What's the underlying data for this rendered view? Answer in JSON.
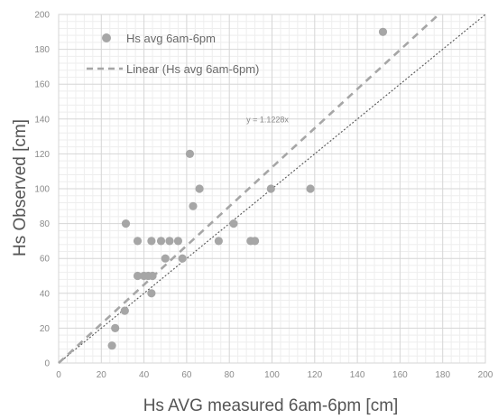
{
  "chart_data": {
    "type": "scatter",
    "title": "",
    "xlabel": "Hs AVG measured 6am-6pm [cm]",
    "ylabel": "Hs Observed [cm]",
    "xlim": [
      0,
      200
    ],
    "ylim": [
      0,
      200
    ],
    "x_ticks": [
      "0",
      "20",
      "40",
      "60",
      "80",
      "100",
      "120",
      "140",
      "160",
      "180",
      "200"
    ],
    "y_ticks": [
      "0",
      "20",
      "40",
      "60",
      "80",
      "100",
      "120",
      "140",
      "160",
      "180",
      "200"
    ],
    "grid": true,
    "legend_position": "top-left",
    "series": [
      {
        "name": "Hs avg 6am-6pm",
        "kind": "scatter",
        "color": "#a6a6a6",
        "points": [
          [
            25,
            10
          ],
          [
            26.5,
            20
          ],
          [
            31,
            30
          ],
          [
            31.5,
            80
          ],
          [
            37,
            70
          ],
          [
            37,
            50
          ],
          [
            40,
            50
          ],
          [
            42,
            50
          ],
          [
            44,
            50
          ],
          [
            43.5,
            40
          ],
          [
            43.5,
            70
          ],
          [
            48,
            70
          ],
          [
            50,
            60
          ],
          [
            52,
            70
          ],
          [
            56,
            70
          ],
          [
            58,
            60
          ],
          [
            61.5,
            120
          ],
          [
            63,
            90
          ],
          [
            66,
            100
          ],
          [
            75,
            70
          ],
          [
            82,
            80
          ],
          [
            90,
            70
          ],
          [
            92,
            70
          ],
          [
            99.5,
            100
          ],
          [
            118,
            100
          ],
          [
            152,
            190
          ]
        ]
      },
      {
        "name": "Linear (Hs avg 6am-6pm)",
        "kind": "trendline",
        "color": "#a6a6a6",
        "slope": 1.1228
      }
    ],
    "reference_line": {
      "kind": "identity",
      "slope": 1,
      "color": "#555555"
    },
    "annotations": [
      {
        "text": "y = 1.1228x",
        "x": 88,
        "y": 138
      }
    ]
  }
}
